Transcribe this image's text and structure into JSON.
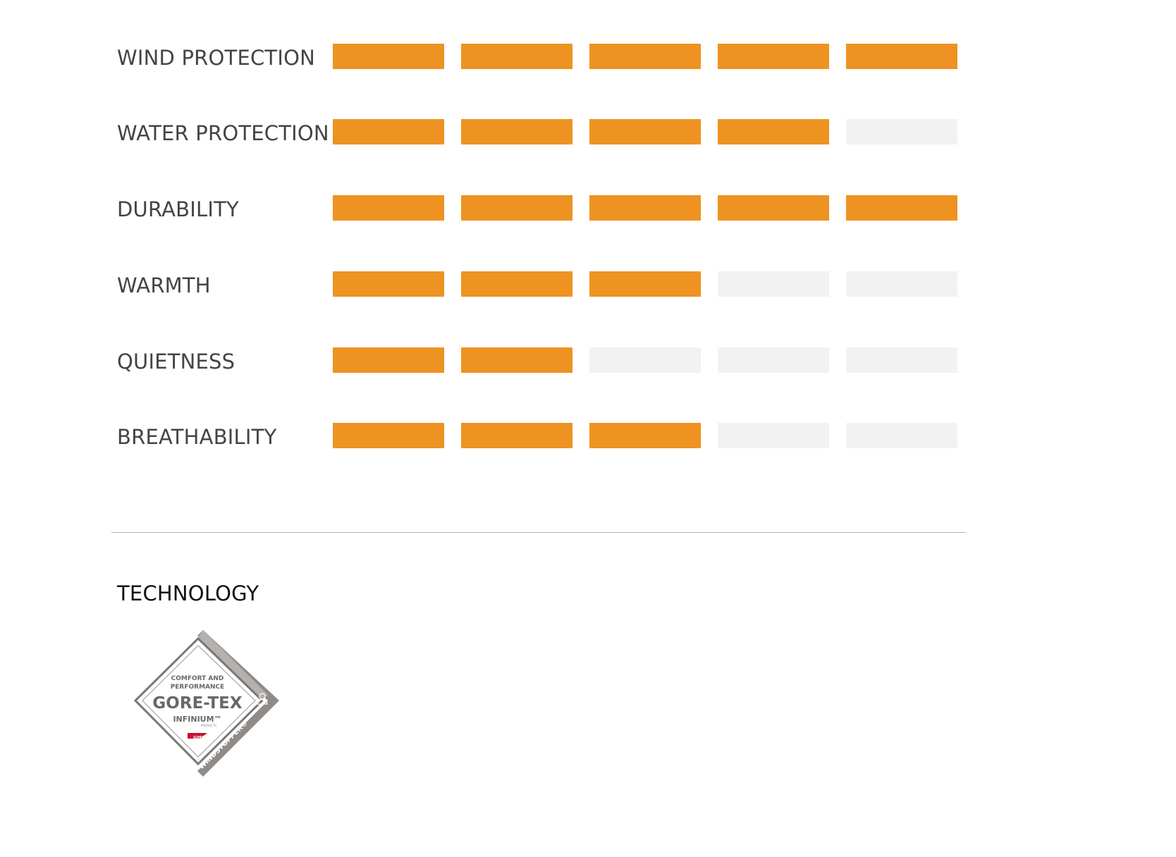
{
  "colors": {
    "filled": "#ee9321",
    "empty": "#f2f2f2",
    "label": "#444444",
    "divider": "#b4b4b4"
  },
  "scale_max": 5,
  "ratings": [
    {
      "label": "WIND PROTECTION",
      "value": 5
    },
    {
      "label": "WATER PROTECTION",
      "value": 4
    },
    {
      "label": "DURABILITY",
      "value": 5
    },
    {
      "label": "WARMTH",
      "value": 3
    },
    {
      "label": "QUIETNESS",
      "value": 2
    },
    {
      "label": "BREATHABILITY",
      "value": 3
    }
  ],
  "technology": {
    "title": "TECHNOLOGY",
    "logo": {
      "tagline_1": "COMFORT AND",
      "tagline_2": "PERFORMANCE",
      "brand": "GORE-TEX",
      "product": "INFINIUM™",
      "sub": "PRODUCTS",
      "side_text": "WINDSTOPPER®",
      "mark": "GORE",
      "icon": "weather-icon"
    }
  }
}
